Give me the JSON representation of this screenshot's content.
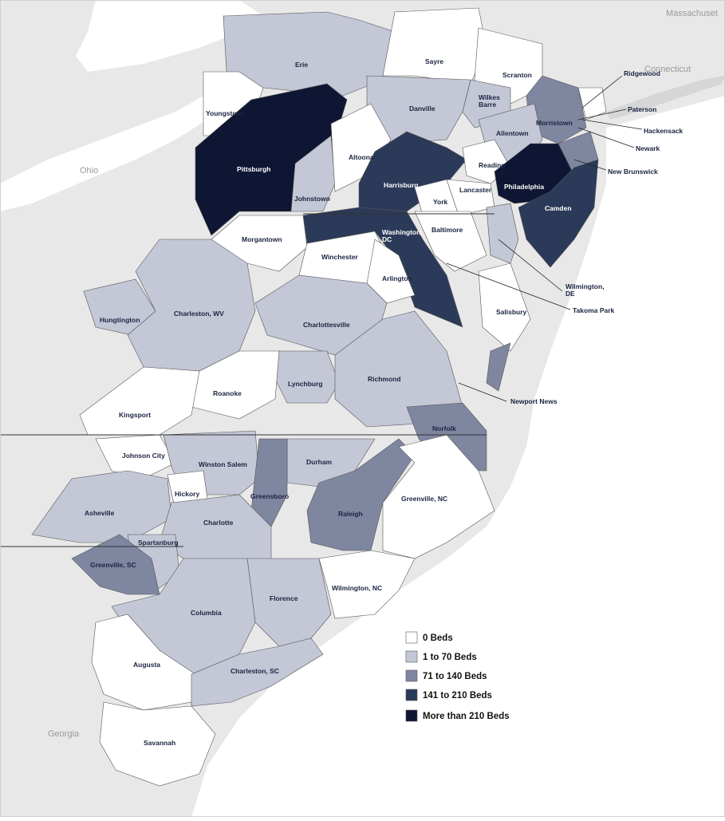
{
  "colors": {
    "c0": "#ffffff",
    "c1": "#c3c7d6",
    "c2": "#7f86a0",
    "c3": "#2c3a59",
    "c4": "#0e1633",
    "background": "#e8e8e8",
    "water": "#ffffff",
    "border": "#555555"
  },
  "background_labels": {
    "massachusetts": "Massachuset",
    "connecticut": "Connecticut",
    "ohio": "Ohio",
    "georgia": "Georgia"
  },
  "legend": [
    {
      "key": "c0",
      "label": "0 Beds"
    },
    {
      "key": "c1",
      "label": "1 to 70 Beds"
    },
    {
      "key": "c2",
      "label": "71 to 140 Beds"
    },
    {
      "key": "c3",
      "label": "141 to 210 Beds"
    },
    {
      "key": "c4",
      "label": "More than 210 Beds"
    }
  ],
  "regions": {
    "erie": "Erie",
    "sayre": "Sayre",
    "scranton": "Scranton",
    "ridgewood": "Ridgewood",
    "youngstown": "Youngstown",
    "danville": "Danville",
    "wilkes_barre": "Wilkes\nBarre",
    "paterson": "Paterson",
    "morristown": "Morristown",
    "hackensack": "Hackensack",
    "allentown": "Allentown",
    "newark": "Newark",
    "pittsburgh": "Pittsburgh",
    "altoona": "Altoona",
    "reading": "Reading",
    "new_brunswick": "New Brunswick",
    "harrisburg": "Harrisburg",
    "johnstown": "Johnstown",
    "philadelphia": "Philadelphia",
    "lancaster": "Lancaster",
    "york": "York",
    "camden": "Camden",
    "washington_dc": "Washington,\nDC",
    "baltimore": "Baltimore",
    "morgantown": "Morgantown",
    "winchester": "Winchester",
    "arlington": "Arlington",
    "wilmington_de": "Wilmington,\nDE",
    "takoma_park": "Takoma Park",
    "hungtington": "Hungtington",
    "charleston_wv": "Charleston, WV",
    "charlottesville": "Charlottesville",
    "salisbury": "Salisbury",
    "lynchburg": "Lynchburg",
    "richmond": "Richmond",
    "roanoke": "Roanoke",
    "newport_news": "Newport News",
    "kingsport": "Kingsport",
    "norfolk": "Norfolk",
    "johnson_city": "Johnson City",
    "winston_salem": "Winston Salem",
    "durham": "Durham",
    "hickory": "Hickory",
    "greensboro": "Greensboro",
    "greenville_nc": "Greenville, NC",
    "asheville": "Asheville",
    "charlotte": "Charlotte",
    "raleigh": "Raleigh",
    "spartanburg": "Spartanburg",
    "greenville_sc": "Greenville, SC",
    "wilmington_nc": "Wilmington, NC",
    "florence": "Florence",
    "columbia": "Columbia",
    "augusta": "Augusta",
    "charleston_sc": "Charleston, SC",
    "savannah": "Savannah"
  }
}
